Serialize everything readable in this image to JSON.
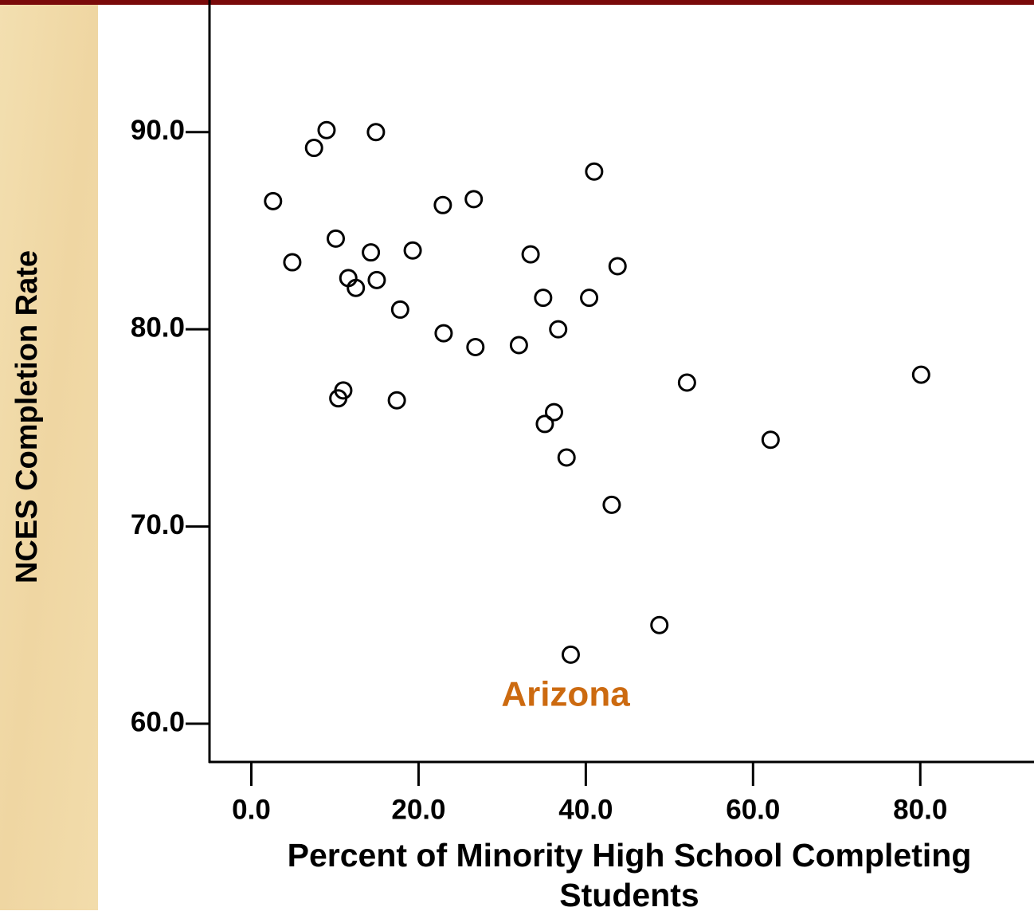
{
  "chart_data": {
    "type": "scatter",
    "xlabel": "Percent of Minority High School Completing Students",
    "ylabel": "NCES Completion Rate",
    "annotations": [
      {
        "text": "Arizona",
        "color": "#cc6a10"
      }
    ],
    "xlim": [
      -5,
      93.6
    ],
    "ylim": [
      58.06,
      96.7
    ],
    "xticks": [
      {
        "value": 0,
        "label": "0.0"
      },
      {
        "value": 20,
        "label": "20.0"
      },
      {
        "value": 40,
        "label": "40.0"
      },
      {
        "value": 60,
        "label": "60.0"
      },
      {
        "value": 80,
        "label": "80.0"
      }
    ],
    "yticks": [
      {
        "value": 60,
        "label": "60.0"
      },
      {
        "value": 70,
        "label": "70.0"
      },
      {
        "value": 80,
        "label": "80.0"
      },
      {
        "value": 90,
        "label": "90.0"
      }
    ],
    "series": [
      {
        "color": "#000000",
        "x": [
          2.6,
          4.9,
          7.5,
          9.0,
          14.9,
          10.1,
          14.3,
          11.6,
          12.5,
          15.0,
          19.3,
          17.8,
          22.9,
          26.6,
          23.0,
          26.8,
          32.0,
          33.4,
          34.9,
          40.4,
          36.7,
          41.0,
          43.8,
          11.0,
          10.4,
          17.4,
          36.2,
          35.1,
          37.7,
          43.1,
          52.1,
          62.1,
          80.1,
          48.8,
          38.2
        ],
        "values": [
          86.5,
          83.4,
          89.2,
          90.1,
          90.0,
          84.6,
          83.9,
          82.6,
          82.1,
          82.5,
          84.0,
          81.0,
          86.3,
          86.6,
          79.8,
          79.1,
          79.2,
          83.8,
          81.6,
          81.6,
          80.0,
          88.0,
          83.2,
          76.9,
          76.5,
          76.4,
          75.8,
          75.2,
          73.5,
          71.1,
          77.3,
          74.4,
          77.7,
          65.0,
          63.5
        ]
      }
    ]
  }
}
